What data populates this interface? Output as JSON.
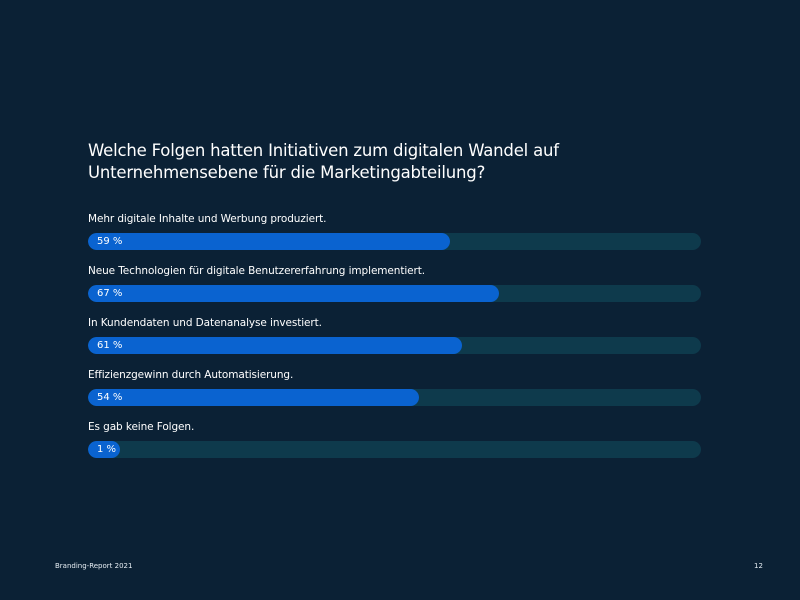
{
  "chart_data": {
    "type": "bar",
    "orientation": "horizontal",
    "title": "Welche Folgen hatten Initiativen zum digitalen Wandel auf Unternehmensebene für die Marketingabteilung?",
    "categories": [
      "Mehr digitale Inhalte und Werbung produziert.",
      "Neue Technologien für digitale Benutzererfahrung implementiert.",
      "In Kundendaten und Datenanalyse investiert.",
      "Effizienzgewinn durch Automatisierung.",
      "Es gab keine Folgen."
    ],
    "values": [
      59,
      67,
      61,
      54,
      1
    ],
    "value_labels": [
      "59 %",
      "67 %",
      "61 %",
      "54 %",
      "1 %"
    ],
    "unit": "%",
    "xlim": [
      0,
      100
    ],
    "grid": false,
    "colors": {
      "background": "#0b2135",
      "bar": "#0a63d0",
      "track": "#0e3a4c",
      "text": "#ffffff"
    }
  },
  "footer": {
    "report": "Branding-Report 2021",
    "page": "12"
  }
}
